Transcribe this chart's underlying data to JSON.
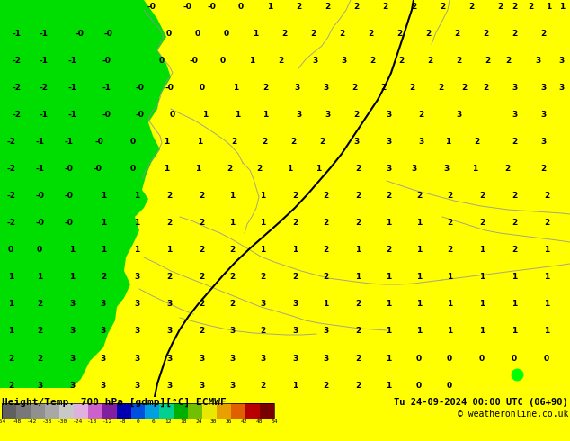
{
  "title_left": "Height/Temp. 700 hPa [gdmp][°C] ECMWF",
  "title_right": "Tu 24-09-2024 00:00 UTC (06+90)",
  "copyright": "© weatheronline.co.uk",
  "colorbar_values": [
    -54,
    -48,
    -42,
    -38,
    -30,
    -24,
    -18,
    -12,
    -8,
    0,
    6,
    12,
    18,
    24,
    30,
    36,
    42,
    48,
    54
  ],
  "colorbar_colors": [
    "#606060",
    "#787878",
    "#909090",
    "#a8a8a8",
    "#c8c8c8",
    "#e0b0e0",
    "#cc60cc",
    "#8020a0",
    "#0000b0",
    "#0050e0",
    "#00a0e0",
    "#00d090",
    "#00b000",
    "#70c000",
    "#e8e800",
    "#e8a000",
    "#e06000",
    "#b80000",
    "#780000"
  ],
  "map_bg_yellow": "#ffff00",
  "land_green": "#00dd00",
  "border_color": "#9090a0",
  "thick_contour_color": "#000000",
  "number_color": "#000000",
  "bottom_bg": "#c8c800",
  "green_dot_color": "#00ff00",
  "fig_width": 6.34,
  "fig_height": 4.9,
  "dpi": 100,
  "numbers": [
    [
      "-0",
      168,
      8
    ],
    [
      "-0",
      208,
      8
    ],
    [
      "-0",
      235,
      8
    ],
    [
      "0",
      268,
      8
    ],
    [
      "1",
      300,
      8
    ],
    [
      "2",
      332,
      8
    ],
    [
      "2",
      364,
      8
    ],
    [
      "2",
      396,
      8
    ],
    [
      "2",
      428,
      8
    ],
    [
      "2",
      460,
      8
    ],
    [
      "2",
      492,
      8
    ],
    [
      "2",
      524,
      8
    ],
    [
      "2",
      556,
      8
    ],
    [
      "2",
      572,
      8
    ],
    [
      "2",
      590,
      8
    ],
    [
      "1",
      610,
      8
    ],
    [
      "1",
      625,
      8
    ],
    [
      "-1",
      18,
      38
    ],
    [
      "-1",
      48,
      38
    ],
    [
      "-0",
      88,
      38
    ],
    [
      "-0",
      120,
      38
    ],
    [
      "0",
      188,
      38
    ],
    [
      "0",
      220,
      38
    ],
    [
      "0",
      252,
      38
    ],
    [
      "1",
      284,
      38
    ],
    [
      "2",
      316,
      38
    ],
    [
      "2",
      348,
      38
    ],
    [
      "2",
      380,
      38
    ],
    [
      "2",
      412,
      38
    ],
    [
      "2",
      444,
      38
    ],
    [
      "2",
      476,
      38
    ],
    [
      "2",
      508,
      38
    ],
    [
      "2",
      540,
      38
    ],
    [
      "2",
      572,
      38
    ],
    [
      "2",
      604,
      38
    ],
    [
      "-2",
      18,
      68
    ],
    [
      "-1",
      48,
      68
    ],
    [
      "-1",
      80,
      68
    ],
    [
      "-0",
      118,
      68
    ],
    [
      "0",
      180,
      68
    ],
    [
      "-0",
      215,
      68
    ],
    [
      "0",
      248,
      68
    ],
    [
      "1",
      280,
      68
    ],
    [
      "2",
      312,
      68
    ],
    [
      "3",
      350,
      68
    ],
    [
      "3",
      382,
      68
    ],
    [
      "2",
      414,
      68
    ],
    [
      "2",
      446,
      68
    ],
    [
      "2",
      478,
      68
    ],
    [
      "2",
      510,
      68
    ],
    [
      "2",
      542,
      68
    ],
    [
      "2",
      565,
      68
    ],
    [
      "3",
      598,
      68
    ],
    [
      "3",
      625,
      68
    ],
    [
      "-2",
      18,
      98
    ],
    [
      "-2",
      48,
      98
    ],
    [
      "-1",
      80,
      98
    ],
    [
      "-1",
      118,
      98
    ],
    [
      "-0",
      155,
      98
    ],
    [
      "-0",
      188,
      98
    ],
    [
      "0",
      225,
      98
    ],
    [
      "1",
      262,
      98
    ],
    [
      "2",
      295,
      98
    ],
    [
      "3",
      330,
      98
    ],
    [
      "3",
      362,
      98
    ],
    [
      "2",
      394,
      98
    ],
    [
      "2",
      426,
      98
    ],
    [
      "2",
      458,
      98
    ],
    [
      "2",
      490,
      98
    ],
    [
      "2",
      516,
      98
    ],
    [
      "2",
      540,
      98
    ],
    [
      "3",
      572,
      98
    ],
    [
      "3",
      604,
      98
    ],
    [
      "3",
      625,
      98
    ],
    [
      "-2",
      18,
      128
    ],
    [
      "-1",
      48,
      128
    ],
    [
      "-1",
      80,
      128
    ],
    [
      "-0",
      118,
      128
    ],
    [
      "-0",
      155,
      128
    ],
    [
      "0",
      192,
      128
    ],
    [
      "1",
      228,
      128
    ],
    [
      "1",
      264,
      128
    ],
    [
      "1",
      295,
      128
    ],
    [
      "3",
      332,
      128
    ],
    [
      "3",
      364,
      128
    ],
    [
      "2",
      396,
      128
    ],
    [
      "3",
      432,
      128
    ],
    [
      "2",
      468,
      128
    ],
    [
      "3",
      510,
      128
    ],
    [
      "3",
      572,
      128
    ],
    [
      "3",
      604,
      128
    ],
    [
      "-2",
      12,
      158
    ],
    [
      "-1",
      44,
      158
    ],
    [
      "-1",
      76,
      158
    ],
    [
      "-0",
      110,
      158
    ],
    [
      "0",
      148,
      158
    ],
    [
      "1",
      185,
      158
    ],
    [
      "1",
      222,
      158
    ],
    [
      "2",
      260,
      158
    ],
    [
      "2",
      294,
      158
    ],
    [
      "2",
      326,
      158
    ],
    [
      "2",
      358,
      158
    ],
    [
      "3",
      396,
      158
    ],
    [
      "3",
      432,
      158
    ],
    [
      "3",
      468,
      158
    ],
    [
      "1",
      498,
      158
    ],
    [
      "2",
      530,
      158
    ],
    [
      "2",
      572,
      158
    ],
    [
      "3",
      604,
      158
    ],
    [
      "-2",
      12,
      188
    ],
    [
      "-1",
      44,
      188
    ],
    [
      "-0",
      76,
      188
    ],
    [
      "-0",
      108,
      188
    ],
    [
      "0",
      148,
      188
    ],
    [
      "1",
      185,
      188
    ],
    [
      "1",
      220,
      188
    ],
    [
      "2",
      255,
      188
    ],
    [
      "2",
      288,
      188
    ],
    [
      "1",
      322,
      188
    ],
    [
      "1",
      354,
      188
    ],
    [
      "2",
      398,
      188
    ],
    [
      "3",
      432,
      188
    ],
    [
      "3",
      460,
      188
    ],
    [
      "3",
      496,
      188
    ],
    [
      "1",
      528,
      188
    ],
    [
      "2",
      564,
      188
    ],
    [
      "2",
      604,
      188
    ],
    [
      "-2",
      12,
      218
    ],
    [
      "-0",
      44,
      218
    ],
    [
      "-0",
      76,
      218
    ],
    [
      "1",
      115,
      218
    ],
    [
      "1",
      152,
      218
    ],
    [
      "2",
      188,
      218
    ],
    [
      "2",
      224,
      218
    ],
    [
      "1",
      258,
      218
    ],
    [
      "1",
      292,
      218
    ],
    [
      "2",
      328,
      218
    ],
    [
      "2",
      362,
      218
    ],
    [
      "2",
      398,
      218
    ],
    [
      "2",
      432,
      218
    ],
    [
      "2",
      466,
      218
    ],
    [
      "2",
      500,
      218
    ],
    [
      "2",
      536,
      218
    ],
    [
      "2",
      572,
      218
    ],
    [
      "2",
      608,
      218
    ],
    [
      "-2",
      12,
      248
    ],
    [
      "-0",
      44,
      248
    ],
    [
      "-0",
      76,
      248
    ],
    [
      "1",
      115,
      248
    ],
    [
      "1",
      152,
      248
    ],
    [
      "2",
      188,
      248
    ],
    [
      "2",
      224,
      248
    ],
    [
      "1",
      258,
      248
    ],
    [
      "1",
      292,
      248
    ],
    [
      "2",
      328,
      248
    ],
    [
      "2",
      362,
      248
    ],
    [
      "2",
      398,
      248
    ],
    [
      "1",
      432,
      248
    ],
    [
      "1",
      466,
      248
    ],
    [
      "2",
      500,
      248
    ],
    [
      "2",
      536,
      248
    ],
    [
      "2",
      572,
      248
    ],
    [
      "2",
      608,
      248
    ],
    [
      "0",
      12,
      278
    ],
    [
      "0",
      44,
      278
    ],
    [
      "1",
      80,
      278
    ],
    [
      "1",
      115,
      278
    ],
    [
      "1",
      152,
      278
    ],
    [
      "1",
      188,
      278
    ],
    [
      "2",
      224,
      278
    ],
    [
      "2",
      258,
      278
    ],
    [
      "1",
      292,
      278
    ],
    [
      "1",
      328,
      278
    ],
    [
      "2",
      362,
      278
    ],
    [
      "1",
      398,
      278
    ],
    [
      "2",
      432,
      278
    ],
    [
      "1",
      466,
      278
    ],
    [
      "2",
      500,
      278
    ],
    [
      "1",
      536,
      278
    ],
    [
      "2",
      572,
      278
    ],
    [
      "1",
      608,
      278
    ],
    [
      "1",
      12,
      308
    ],
    [
      "1",
      44,
      308
    ],
    [
      "1",
      80,
      308
    ],
    [
      "2",
      115,
      308
    ],
    [
      "3",
      152,
      308
    ],
    [
      "2",
      188,
      308
    ],
    [
      "2",
      224,
      308
    ],
    [
      "2",
      258,
      308
    ],
    [
      "2",
      292,
      308
    ],
    [
      "2",
      328,
      308
    ],
    [
      "2",
      362,
      308
    ],
    [
      "1",
      398,
      308
    ],
    [
      "1",
      432,
      308
    ],
    [
      "1",
      466,
      308
    ],
    [
      "1",
      500,
      308
    ],
    [
      "1",
      536,
      308
    ],
    [
      "1",
      572,
      308
    ],
    [
      "1",
      608,
      308
    ],
    [
      "1",
      12,
      338
    ],
    [
      "2",
      44,
      338
    ],
    [
      "3",
      80,
      338
    ],
    [
      "3",
      115,
      338
    ],
    [
      "3",
      152,
      338
    ],
    [
      "3",
      188,
      338
    ],
    [
      "2",
      224,
      338
    ],
    [
      "2",
      258,
      338
    ],
    [
      "3",
      292,
      338
    ],
    [
      "3",
      328,
      338
    ],
    [
      "1",
      362,
      338
    ],
    [
      "2",
      398,
      338
    ],
    [
      "1",
      432,
      338
    ],
    [
      "1",
      466,
      338
    ],
    [
      "1",
      500,
      338
    ],
    [
      "1",
      536,
      338
    ],
    [
      "1",
      572,
      338
    ],
    [
      "1",
      608,
      338
    ],
    [
      "1",
      12,
      368
    ],
    [
      "2",
      44,
      368
    ],
    [
      "3",
      80,
      368
    ],
    [
      "3",
      115,
      368
    ],
    [
      "3",
      152,
      368
    ],
    [
      "3",
      188,
      368
    ],
    [
      "2",
      224,
      368
    ],
    [
      "3",
      258,
      368
    ],
    [
      "2",
      292,
      368
    ],
    [
      "3",
      328,
      368
    ],
    [
      "3",
      362,
      368
    ],
    [
      "2",
      398,
      368
    ],
    [
      "1",
      432,
      368
    ],
    [
      "1",
      466,
      368
    ],
    [
      "1",
      500,
      368
    ],
    [
      "1",
      536,
      368
    ],
    [
      "1",
      572,
      368
    ],
    [
      "1",
      608,
      368
    ],
    [
      "2",
      12,
      398
    ],
    [
      "2",
      44,
      398
    ],
    [
      "3",
      80,
      398
    ],
    [
      "3",
      115,
      398
    ],
    [
      "3",
      152,
      398
    ],
    [
      "3",
      188,
      398
    ],
    [
      "3",
      224,
      398
    ],
    [
      "3",
      258,
      398
    ],
    [
      "3",
      292,
      398
    ],
    [
      "3",
      328,
      398
    ],
    [
      "3",
      362,
      398
    ],
    [
      "2",
      398,
      398
    ],
    [
      "1",
      432,
      398
    ],
    [
      "0",
      466,
      398
    ],
    [
      "0",
      500,
      398
    ],
    [
      "0",
      536,
      398
    ],
    [
      "0",
      572,
      398
    ],
    [
      "0",
      608,
      398
    ],
    [
      "2",
      12,
      428
    ],
    [
      "3",
      44,
      428
    ],
    [
      "3",
      80,
      428
    ],
    [
      "3",
      115,
      428
    ],
    [
      "3",
      152,
      428
    ],
    [
      "3",
      188,
      428
    ],
    [
      "3",
      224,
      428
    ],
    [
      "3",
      258,
      428
    ],
    [
      "2",
      292,
      428
    ],
    [
      "1",
      328,
      428
    ],
    [
      "2",
      362,
      428
    ],
    [
      "2",
      398,
      428
    ],
    [
      "1",
      432,
      428
    ],
    [
      "0",
      466,
      428
    ],
    [
      "0",
      500,
      428
    ]
  ]
}
